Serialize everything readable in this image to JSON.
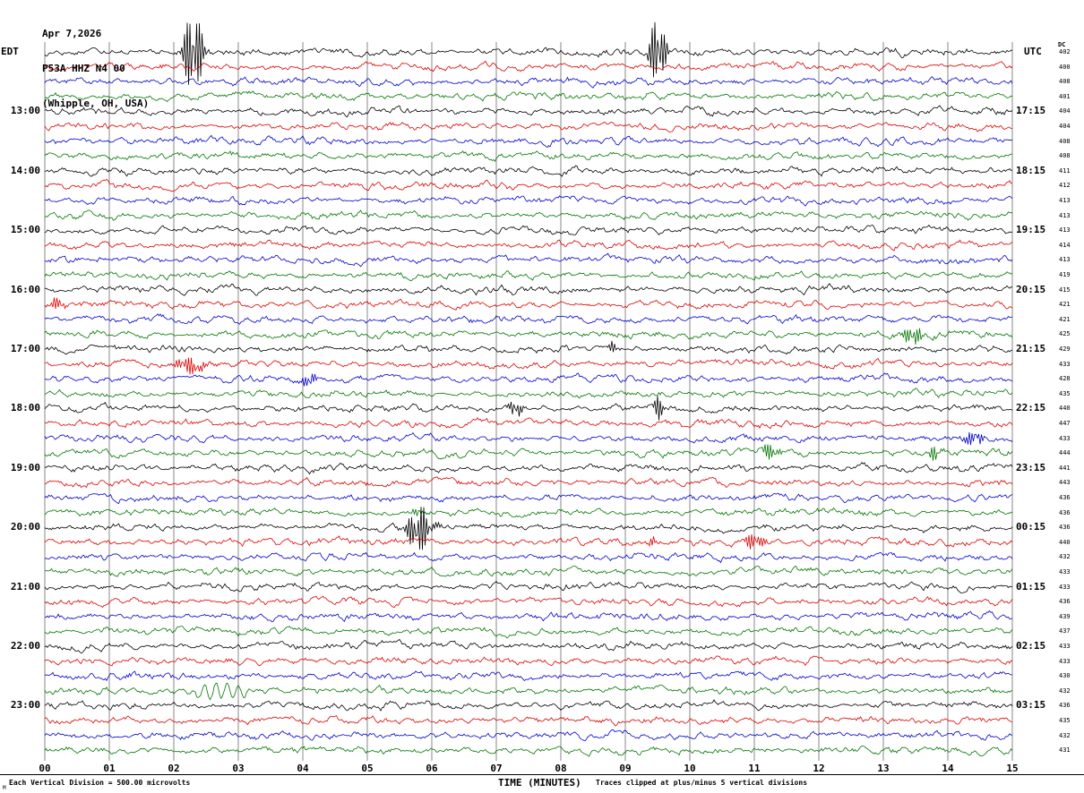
{
  "title": {
    "date": "Apr 7,2026",
    "station": "P53A HHZ N4 00",
    "location": "(Whipple, OH, USA)"
  },
  "axes": {
    "left_header": "EDT",
    "right_header": "UTC",
    "dc_header": "DC",
    "x_label": "TIME (MINUTES)",
    "x_ticks": [
      "00",
      "01",
      "02",
      "03",
      "04",
      "05",
      "06",
      "07",
      "08",
      "09",
      "10",
      "11",
      "12",
      "13",
      "14",
      "15"
    ]
  },
  "footer": {
    "scale_note": "Each Vertical Division =   500.00 microvolts",
    "clip_note": "Traces clipped at plus/minus 5 vertical divisions",
    "corner_mark": "M"
  },
  "colors": {
    "black": "#000000",
    "red": "#dd0000",
    "blue": "#0000cc",
    "green": "#007700",
    "grid": "#555555"
  },
  "chart_data": {
    "type": "line",
    "description": "24-channel helicorder seismogram, 15 minutes per trace, colors cycle black/red/blue/green, 48 traces from 12:00 EDT to 00:00 EDT",
    "x_minutes_range": [
      0,
      15
    ],
    "minutes_per_row": 15,
    "rows": [
      {
        "color": "black",
        "left": "",
        "right": "",
        "dc": 402
      },
      {
        "color": "red",
        "left": "",
        "right": "",
        "dc": 400
      },
      {
        "color": "blue",
        "left": "",
        "right": "",
        "dc": 408
      },
      {
        "color": "green",
        "left": "",
        "right": "",
        "dc": 401
      },
      {
        "color": "black",
        "left": "13:00",
        "right": "17:15",
        "dc": 404
      },
      {
        "color": "red",
        "left": "",
        "right": "",
        "dc": 404
      },
      {
        "color": "blue",
        "left": "",
        "right": "",
        "dc": 408
      },
      {
        "color": "green",
        "left": "",
        "right": "",
        "dc": 408
      },
      {
        "color": "black",
        "left": "14:00",
        "right": "18:15",
        "dc": 411
      },
      {
        "color": "red",
        "left": "",
        "right": "",
        "dc": 412
      },
      {
        "color": "blue",
        "left": "",
        "right": "",
        "dc": 413
      },
      {
        "color": "green",
        "left": "",
        "right": "",
        "dc": 413
      },
      {
        "color": "black",
        "left": "15:00",
        "right": "19:15",
        "dc": 413
      },
      {
        "color": "red",
        "left": "",
        "right": "",
        "dc": 414
      },
      {
        "color": "blue",
        "left": "",
        "right": "",
        "dc": 413
      },
      {
        "color": "green",
        "left": "",
        "right": "",
        "dc": 419
      },
      {
        "color": "black",
        "left": "16:00",
        "right": "20:15",
        "dc": 415
      },
      {
        "color": "red",
        "left": "",
        "right": "",
        "dc": 421
      },
      {
        "color": "blue",
        "left": "",
        "right": "",
        "dc": 421
      },
      {
        "color": "green",
        "left": "",
        "right": "",
        "dc": 425
      },
      {
        "color": "black",
        "left": "17:00",
        "right": "21:15",
        "dc": 429
      },
      {
        "color": "red",
        "left": "",
        "right": "",
        "dc": 433
      },
      {
        "color": "blue",
        "left": "",
        "right": "",
        "dc": 428
      },
      {
        "color": "green",
        "left": "",
        "right": "",
        "dc": 435
      },
      {
        "color": "black",
        "left": "18:00",
        "right": "22:15",
        "dc": 440
      },
      {
        "color": "red",
        "left": "",
        "right": "",
        "dc": 447
      },
      {
        "color": "blue",
        "left": "",
        "right": "",
        "dc": 433
      },
      {
        "color": "green",
        "left": "",
        "right": "",
        "dc": 444
      },
      {
        "color": "black",
        "left": "19:00",
        "right": "23:15",
        "dc": 441
      },
      {
        "color": "red",
        "left": "",
        "right": "",
        "dc": 443
      },
      {
        "color": "blue",
        "left": "",
        "right": "",
        "dc": 436
      },
      {
        "color": "green",
        "left": "",
        "right": "",
        "dc": 436
      },
      {
        "color": "black",
        "left": "20:00",
        "right": "00:15",
        "dc": 436
      },
      {
        "color": "red",
        "left": "",
        "right": "",
        "dc": 440
      },
      {
        "color": "blue",
        "left": "",
        "right": "",
        "dc": 432
      },
      {
        "color": "green",
        "left": "",
        "right": "",
        "dc": 433
      },
      {
        "color": "black",
        "left": "21:00",
        "right": "01:15",
        "dc": 433
      },
      {
        "color": "red",
        "left": "",
        "right": "",
        "dc": 436
      },
      {
        "color": "blue",
        "left": "",
        "right": "",
        "dc": 439
      },
      {
        "color": "green",
        "left": "",
        "right": "",
        "dc": 437
      },
      {
        "color": "black",
        "left": "22:00",
        "right": "02:15",
        "dc": 433
      },
      {
        "color": "red",
        "left": "",
        "right": "",
        "dc": 433
      },
      {
        "color": "blue",
        "left": "",
        "right": "",
        "dc": 430
      },
      {
        "color": "green",
        "left": "",
        "right": "",
        "dc": 432
      },
      {
        "color": "black",
        "left": "23:00",
        "right": "03:15",
        "dc": 436
      },
      {
        "color": "red",
        "left": "",
        "right": "",
        "dc": 435
      },
      {
        "color": "blue",
        "left": "",
        "right": "",
        "dc": 432
      },
      {
        "color": "green",
        "left": "",
        "right": "",
        "dc": 431
      }
    ],
    "events": [
      {
        "row": 0,
        "t": 2.3,
        "amp": 52,
        "w": 0.1
      },
      {
        "row": 0,
        "t": 9.5,
        "amp": 45,
        "w": 0.08
      },
      {
        "row": 17,
        "t": 0.2,
        "amp": 8,
        "w": 0.08
      },
      {
        "row": 19,
        "t": 13.45,
        "amp": 11,
        "w": 0.1
      },
      {
        "row": 20,
        "t": 8.8,
        "amp": 6,
        "w": 0.05
      },
      {
        "row": 21,
        "t": 2.25,
        "amp": 10,
        "w": 0.15
      },
      {
        "row": 22,
        "t": 4.1,
        "amp": 9,
        "w": 0.07
      },
      {
        "row": 24,
        "t": 7.3,
        "amp": 13,
        "w": 0.06
      },
      {
        "row": 24,
        "t": 9.5,
        "amp": 13,
        "w": 0.06
      },
      {
        "row": 26,
        "t": 14.4,
        "amp": 9,
        "w": 0.1
      },
      {
        "row": 27,
        "t": 11.25,
        "amp": 10,
        "w": 0.08
      },
      {
        "row": 27,
        "t": 13.8,
        "amp": 9,
        "w": 0.06
      },
      {
        "row": 31,
        "t": 5.8,
        "amp": 6,
        "w": 0.06
      },
      {
        "row": 32,
        "t": 5.8,
        "amp": 28,
        "w": 0.12
      },
      {
        "row": 33,
        "t": 9.4,
        "amp": 5,
        "w": 0.06
      },
      {
        "row": 33,
        "t": 11.0,
        "amp": 10,
        "w": 0.1
      },
      {
        "row": 43,
        "t": 2.7,
        "amp": 8,
        "w": 0.45,
        "type": "tremor"
      }
    ]
  }
}
